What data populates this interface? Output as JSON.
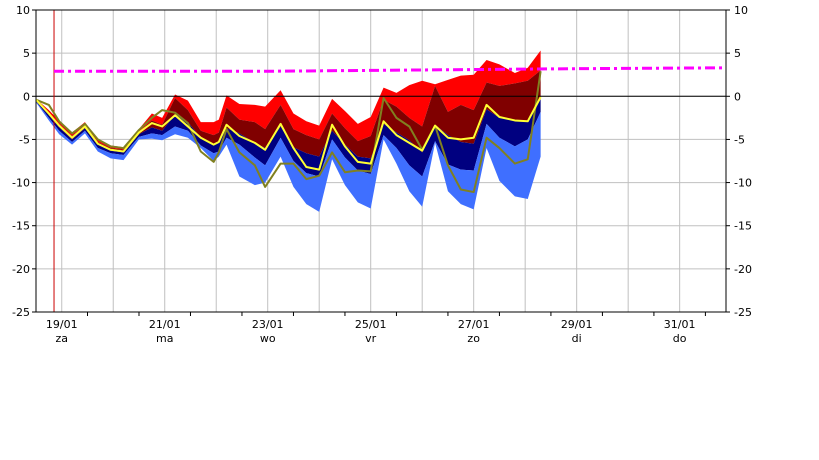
{
  "chart_data": {
    "type": "area",
    "x_ticks": [
      {
        "date": "19/01",
        "day": "za",
        "t": 0.0
      },
      {
        "date": "21/01",
        "day": "ma",
        "t": 2.0
      },
      {
        "date": "23/01",
        "day": "wo",
        "t": 4.0
      },
      {
        "date": "25/01",
        "day": "vr",
        "t": 6.0
      },
      {
        "date": "27/01",
        "day": "zo",
        "t": 8.0
      },
      {
        "date": "29/01",
        "day": "di",
        "t": 10.0
      },
      {
        "date": "31/01",
        "day": "do",
        "t": 12.0
      }
    ],
    "xlim": [
      -0.5,
      12.9
    ],
    "ylim": [
      -25,
      10
    ],
    "y_ticks": [
      10,
      5,
      0,
      -5,
      -10,
      -15,
      -20,
      -25
    ],
    "grid": true,
    "now_line_t": -0.15,
    "colors": {
      "band_outer": "#ff0000",
      "band_upper": "#800000",
      "band_lower": "#000080",
      "band_bottom": "#3f6fff",
      "mean_line": "#ffff33",
      "control_line": "#808020",
      "climate_line": "#ff00ff",
      "now_line": "#cc0000",
      "zero_line": "#000000",
      "grid": "#c0c0c0"
    },
    "series": [
      {
        "role": "max",
        "points": [
          [
            -0.5,
            -0.3
          ],
          [
            -0.25,
            -1.6
          ],
          [
            -0.05,
            -2.8
          ],
          [
            0.2,
            -4.2
          ],
          [
            0.45,
            -3.0
          ],
          [
            0.7,
            -5.0
          ],
          [
            0.95,
            -5.7
          ],
          [
            1.2,
            -5.9
          ],
          [
            1.5,
            -3.8
          ],
          [
            1.75,
            -2.0
          ],
          [
            1.95,
            -2.5
          ],
          [
            2.2,
            0.2
          ],
          [
            2.45,
            -0.5
          ],
          [
            2.7,
            -3.0
          ],
          [
            2.95,
            -3.0
          ],
          [
            3.05,
            -2.7
          ],
          [
            3.2,
            0.1
          ],
          [
            3.45,
            -0.9
          ],
          [
            3.75,
            -1.0
          ],
          [
            3.95,
            -1.2
          ],
          [
            4.25,
            0.7
          ],
          [
            4.5,
            -2.0
          ],
          [
            4.75,
            -2.9
          ],
          [
            5.0,
            -3.4
          ],
          [
            5.25,
            -0.3
          ],
          [
            5.5,
            -1.7
          ],
          [
            5.75,
            -3.2
          ],
          [
            6.0,
            -2.4
          ],
          [
            6.25,
            1.0
          ],
          [
            6.5,
            0.4
          ],
          [
            6.75,
            1.3
          ],
          [
            7.0,
            1.8
          ],
          [
            7.25,
            1.4
          ],
          [
            7.5,
            1.9
          ],
          [
            7.75,
            2.4
          ],
          [
            8.0,
            2.5
          ],
          [
            8.25,
            4.2
          ],
          [
            8.5,
            3.7
          ],
          [
            8.8,
            2.7
          ],
          [
            9.05,
            3.3
          ],
          [
            9.3,
            5.3
          ]
        ]
      },
      {
        "role": "q75",
        "points": [
          [
            -0.5,
            -0.4
          ],
          [
            -0.25,
            -1.9
          ],
          [
            -0.05,
            -3.2
          ],
          [
            0.2,
            -4.6
          ],
          [
            0.45,
            -3.3
          ],
          [
            0.7,
            -5.3
          ],
          [
            0.95,
            -6.0
          ],
          [
            1.2,
            -6.2
          ],
          [
            1.5,
            -4.1
          ],
          [
            1.75,
            -2.8
          ],
          [
            1.95,
            -3.3
          ],
          [
            2.2,
            -0.2
          ],
          [
            2.45,
            -1.6
          ],
          [
            2.7,
            -4.0
          ],
          [
            2.95,
            -4.5
          ],
          [
            3.05,
            -4.2
          ],
          [
            3.2,
            -1.3
          ],
          [
            3.45,
            -2.7
          ],
          [
            3.75,
            -3.0
          ],
          [
            3.95,
            -3.8
          ],
          [
            4.25,
            -1.0
          ],
          [
            4.5,
            -3.8
          ],
          [
            4.75,
            -4.5
          ],
          [
            5.0,
            -5.0
          ],
          [
            5.25,
            -2.0
          ],
          [
            5.5,
            -3.7
          ],
          [
            5.75,
            -5.2
          ],
          [
            6.0,
            -4.6
          ],
          [
            6.25,
            -0.4
          ],
          [
            6.5,
            -1.2
          ],
          [
            6.75,
            -2.5
          ],
          [
            7.0,
            -3.5
          ],
          [
            7.25,
            1.2
          ],
          [
            7.5,
            -1.8
          ],
          [
            7.75,
            -1.0
          ],
          [
            8.0,
            -1.6
          ],
          [
            8.25,
            1.6
          ],
          [
            8.5,
            1.2
          ],
          [
            8.8,
            1.5
          ],
          [
            9.05,
            1.8
          ],
          [
            9.3,
            3.0
          ]
        ]
      },
      {
        "role": "median",
        "points": [
          [
            -0.5,
            -0.5
          ],
          [
            -0.25,
            -2.2
          ],
          [
            -0.05,
            -3.6
          ],
          [
            0.2,
            -5.0
          ],
          [
            0.45,
            -3.7
          ],
          [
            0.7,
            -5.6
          ],
          [
            0.95,
            -6.3
          ],
          [
            1.2,
            -6.5
          ],
          [
            1.5,
            -4.4
          ],
          [
            1.75,
            -3.6
          ],
          [
            1.95,
            -4.0
          ],
          [
            2.2,
            -2.1
          ],
          [
            2.45,
            -3.0
          ],
          [
            2.7,
            -4.8
          ],
          [
            2.95,
            -5.5
          ],
          [
            3.05,
            -5.2
          ],
          [
            3.2,
            -3.7
          ],
          [
            3.45,
            -4.3
          ],
          [
            3.75,
            -5.4
          ],
          [
            3.95,
            -6.0
          ],
          [
            4.25,
            -3.5
          ],
          [
            4.5,
            -5.9
          ],
          [
            4.75,
            -6.6
          ],
          [
            5.0,
            -7.0
          ],
          [
            5.25,
            -4.0
          ],
          [
            5.5,
            -5.6
          ],
          [
            5.75,
            -7.0
          ],
          [
            6.0,
            -7.2
          ],
          [
            6.25,
            -3.2
          ],
          [
            6.5,
            -4.2
          ],
          [
            6.75,
            -5.1
          ],
          [
            7.0,
            -6.5
          ],
          [
            7.25,
            -3.3
          ],
          [
            7.5,
            -4.5
          ],
          [
            7.75,
            -5.3
          ],
          [
            8.0,
            -5.5
          ],
          [
            8.25,
            -1.5
          ],
          [
            8.5,
            -2.5
          ],
          [
            8.8,
            -2.8
          ],
          [
            9.05,
            -2.8
          ],
          [
            9.3,
            -0.2
          ]
        ]
      },
      {
        "role": "q25",
        "points": [
          [
            -0.5,
            -0.6
          ],
          [
            -0.25,
            -2.5
          ],
          [
            -0.05,
            -4.0
          ],
          [
            0.2,
            -5.3
          ],
          [
            0.45,
            -4.0
          ],
          [
            0.7,
            -6.0
          ],
          [
            0.95,
            -6.6
          ],
          [
            1.2,
            -6.8
          ],
          [
            1.5,
            -4.7
          ],
          [
            1.75,
            -4.3
          ],
          [
            1.95,
            -4.5
          ],
          [
            2.2,
            -3.5
          ],
          [
            2.45,
            -4.0
          ],
          [
            2.7,
            -5.7
          ],
          [
            2.95,
            -6.6
          ],
          [
            3.05,
            -6.4
          ],
          [
            3.2,
            -4.8
          ],
          [
            3.45,
            -5.6
          ],
          [
            3.75,
            -7.1
          ],
          [
            3.95,
            -8.0
          ],
          [
            4.25,
            -4.8
          ],
          [
            4.5,
            -7.5
          ],
          [
            4.75,
            -8.9
          ],
          [
            5.0,
            -9.3
          ],
          [
            5.25,
            -5.0
          ],
          [
            5.5,
            -7.1
          ],
          [
            5.75,
            -8.6
          ],
          [
            6.0,
            -9.0
          ],
          [
            6.25,
            -4.5
          ],
          [
            6.5,
            -6.0
          ],
          [
            6.75,
            -8.0
          ],
          [
            7.0,
            -9.3
          ],
          [
            7.25,
            -5.2
          ],
          [
            7.5,
            -7.9
          ],
          [
            7.75,
            -8.5
          ],
          [
            8.0,
            -8.6
          ],
          [
            8.25,
            -3.2
          ],
          [
            8.5,
            -4.8
          ],
          [
            8.8,
            -5.8
          ],
          [
            9.05,
            -5.0
          ],
          [
            9.3,
            -1.8
          ]
        ]
      },
      {
        "role": "min",
        "points": [
          [
            -0.5,
            -0.7
          ],
          [
            -0.25,
            -2.8
          ],
          [
            -0.05,
            -4.4
          ],
          [
            0.2,
            -5.6
          ],
          [
            0.45,
            -4.3
          ],
          [
            0.7,
            -6.4
          ],
          [
            0.95,
            -7.2
          ],
          [
            1.2,
            -7.4
          ],
          [
            1.5,
            -5.0
          ],
          [
            1.75,
            -4.9
          ],
          [
            1.95,
            -5.1
          ],
          [
            2.2,
            -4.4
          ],
          [
            2.45,
            -4.8
          ],
          [
            2.7,
            -6.0
          ],
          [
            2.95,
            -7.5
          ],
          [
            3.05,
            -7.0
          ],
          [
            3.2,
            -5.6
          ],
          [
            3.45,
            -9.3
          ],
          [
            3.75,
            -10.3
          ],
          [
            3.95,
            -10.0
          ],
          [
            4.25,
            -7.0
          ],
          [
            4.5,
            -10.5
          ],
          [
            4.75,
            -12.5
          ],
          [
            5.0,
            -13.4
          ],
          [
            5.25,
            -7.3
          ],
          [
            5.5,
            -10.3
          ],
          [
            5.75,
            -12.3
          ],
          [
            6.0,
            -13.0
          ],
          [
            6.25,
            -5.0
          ],
          [
            6.5,
            -7.8
          ],
          [
            6.75,
            -11.0
          ],
          [
            7.0,
            -12.8
          ],
          [
            7.25,
            -5.4
          ],
          [
            7.5,
            -11.0
          ],
          [
            7.75,
            -12.5
          ],
          [
            8.0,
            -13.1
          ],
          [
            8.25,
            -6.0
          ],
          [
            8.5,
            -9.8
          ],
          [
            8.8,
            -11.6
          ],
          [
            9.05,
            -11.9
          ],
          [
            9.3,
            -7.0
          ]
        ]
      },
      {
        "role": "mean",
        "points": [
          [
            -0.5,
            -0.4
          ],
          [
            -0.25,
            -2.0
          ],
          [
            -0.05,
            -3.4
          ],
          [
            0.2,
            -4.8
          ],
          [
            0.45,
            -3.5
          ],
          [
            0.7,
            -5.5
          ],
          [
            0.95,
            -6.2
          ],
          [
            1.2,
            -6.4
          ],
          [
            1.5,
            -4.2
          ],
          [
            1.75,
            -3.1
          ],
          [
            1.95,
            -3.5
          ],
          [
            2.2,
            -2.2
          ],
          [
            2.45,
            -3.5
          ],
          [
            2.7,
            -4.8
          ],
          [
            2.95,
            -5.6
          ],
          [
            3.05,
            -5.3
          ],
          [
            3.2,
            -3.3
          ],
          [
            3.45,
            -4.6
          ],
          [
            3.75,
            -5.4
          ],
          [
            3.95,
            -6.2
          ],
          [
            4.25,
            -3.2
          ],
          [
            4.5,
            -6.0
          ],
          [
            4.75,
            -8.2
          ],
          [
            5.0,
            -8.5
          ],
          [
            5.25,
            -3.3
          ],
          [
            5.5,
            -5.8
          ],
          [
            5.75,
            -7.6
          ],
          [
            6.0,
            -7.8
          ],
          [
            6.25,
            -2.9
          ],
          [
            6.5,
            -4.5
          ],
          [
            6.75,
            -5.4
          ],
          [
            7.0,
            -6.3
          ],
          [
            7.25,
            -3.4
          ],
          [
            7.5,
            -4.8
          ],
          [
            7.75,
            -5.0
          ],
          [
            8.0,
            -4.8
          ],
          [
            8.25,
            -1.0
          ],
          [
            8.5,
            -2.4
          ],
          [
            8.8,
            -2.8
          ],
          [
            9.05,
            -2.9
          ],
          [
            9.3,
            -0.1
          ]
        ]
      },
      {
        "role": "control",
        "points": [
          [
            -0.5,
            -0.4
          ],
          [
            -0.25,
            -1.0
          ],
          [
            -0.05,
            -2.9
          ],
          [
            0.2,
            -4.3
          ],
          [
            0.45,
            -3.2
          ],
          [
            0.7,
            -5.0
          ],
          [
            0.95,
            -5.8
          ],
          [
            1.2,
            -6.0
          ],
          [
            1.5,
            -3.9
          ],
          [
            1.75,
            -2.5
          ],
          [
            1.95,
            -1.6
          ],
          [
            2.2,
            -1.9
          ],
          [
            2.45,
            -3.1
          ],
          [
            2.7,
            -6.4
          ],
          [
            2.95,
            -7.6
          ],
          [
            3.05,
            -6.5
          ],
          [
            3.2,
            -3.8
          ],
          [
            3.45,
            -6.5
          ],
          [
            3.75,
            -8.0
          ],
          [
            3.95,
            -10.5
          ],
          [
            4.25,
            -7.8
          ],
          [
            4.5,
            -7.8
          ],
          [
            4.75,
            -9.6
          ],
          [
            5.0,
            -9.2
          ],
          [
            5.25,
            -6.5
          ],
          [
            5.5,
            -8.8
          ],
          [
            5.75,
            -8.6
          ],
          [
            6.0,
            -8.7
          ],
          [
            6.25,
            -0.2
          ],
          [
            6.5,
            -2.5
          ],
          [
            6.75,
            -3.5
          ],
          [
            7.0,
            -6.2
          ],
          [
            7.25,
            -3.4
          ],
          [
            7.5,
            -8.0
          ],
          [
            7.75,
            -10.8
          ],
          [
            8.0,
            -11.1
          ],
          [
            8.25,
            -4.8
          ],
          [
            8.5,
            -6.0
          ],
          [
            8.8,
            -7.8
          ],
          [
            9.05,
            -7.3
          ],
          [
            9.3,
            2.9
          ]
        ]
      },
      {
        "role": "climate",
        "points": [
          [
            -0.15,
            2.9
          ],
          [
            2.0,
            2.9
          ],
          [
            4.0,
            2.9
          ],
          [
            6.0,
            3.0
          ],
          [
            8.0,
            3.1
          ],
          [
            10.0,
            3.2
          ],
          [
            12.9,
            3.3
          ]
        ]
      }
    ]
  }
}
